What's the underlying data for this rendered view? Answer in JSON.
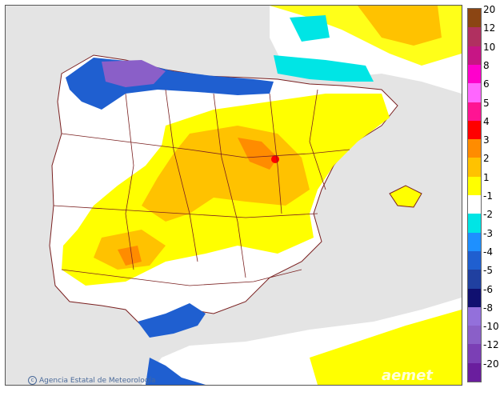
{
  "credit": {
    "icon": "copyright-icon",
    "text": "Agencia Estatal de Meteorología"
  },
  "watermark": "aemet",
  "legend": {
    "swatches": [
      {
        "color": "#8b4513"
      },
      {
        "color": "#b03060"
      },
      {
        "color": "#c71585"
      },
      {
        "color": "#ff00cc"
      },
      {
        "color": "#ff66ff"
      },
      {
        "color": "#ff1493"
      },
      {
        "color": "#ff0000"
      },
      {
        "color": "#ff8c00"
      },
      {
        "color": "#ffc200"
      },
      {
        "color": "#ffff00"
      },
      {
        "color": "#ffffff"
      },
      {
        "color": "#00e5e5"
      },
      {
        "color": "#1e90ff"
      },
      {
        "color": "#1f5fd0"
      },
      {
        "color": "#2040a0"
      },
      {
        "color": "#101070"
      },
      {
        "color": "#9370db"
      },
      {
        "color": "#8a5fc8"
      },
      {
        "color": "#7b3fb5"
      },
      {
        "color": "#6a1e9e"
      }
    ],
    "ticks": [
      "20",
      "12",
      "10",
      "8",
      "6",
      "5",
      "4",
      "3",
      "2",
      "1",
      "-1",
      "-2",
      "-3",
      "-4",
      "-5",
      "-6",
      "-8",
      "-10",
      "-12",
      "-20"
    ]
  }
}
